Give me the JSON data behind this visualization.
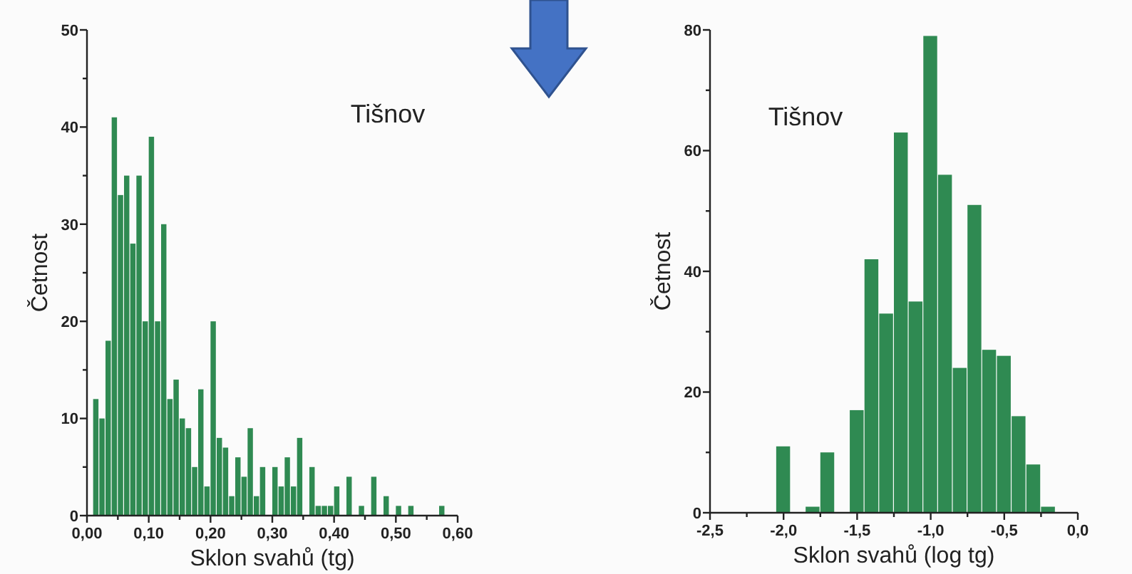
{
  "chart_data": [
    {
      "type": "histogram",
      "title": "Tišnov",
      "xlabel": "Sklon svahů (tg)",
      "ylabel": "Četnost",
      "color": "#2f8a52",
      "bins": [
        0.01,
        0.02,
        0.03,
        0.04,
        0.05,
        0.06,
        0.07,
        0.08,
        0.09,
        0.1,
        0.11,
        0.12,
        0.13,
        0.14,
        0.15,
        0.16,
        0.17,
        0.18,
        0.19,
        0.2,
        0.21,
        0.22,
        0.23,
        0.24,
        0.25,
        0.26,
        0.27,
        0.28,
        0.29,
        0.3,
        0.31,
        0.32,
        0.33,
        0.34,
        0.35,
        0.36,
        0.37,
        0.38,
        0.39,
        0.4,
        0.41,
        0.42,
        0.43,
        0.44,
        0.45,
        0.46,
        0.47,
        0.48,
        0.49,
        0.5,
        0.51,
        0.52,
        0.53,
        0.54,
        0.55,
        0.56,
        0.57,
        0.58
      ],
      "values": [
        12,
        10,
        18,
        41,
        33,
        35,
        28,
        35,
        20,
        39,
        20,
        30,
        12,
        14,
        10,
        9,
        5,
        13,
        3,
        20,
        8,
        7,
        2,
        6,
        4,
        9,
        2,
        5,
        0,
        5,
        3,
        6,
        3,
        8,
        0,
        5,
        1,
        1,
        1,
        3,
        0,
        4,
        0,
        1,
        0,
        4,
        0,
        2,
        0,
        1,
        0,
        1,
        0,
        0,
        0,
        0,
        1
      ],
      "xlim": [
        0,
        0.6
      ],
      "ylim": [
        0,
        50
      ],
      "xticks": [
        {
          "value": 0,
          "label": "0,00"
        },
        {
          "value": 0.05,
          "label": null
        },
        {
          "value": 0.1,
          "label": "0,10"
        },
        {
          "value": 0.15,
          "label": null
        },
        {
          "value": 0.2,
          "label": "0,20"
        },
        {
          "value": 0.25,
          "label": null
        },
        {
          "value": 0.3,
          "label": "0,30"
        },
        {
          "value": 0.35,
          "label": null
        },
        {
          "value": 0.4,
          "label": "0,40"
        },
        {
          "value": 0.45,
          "label": null
        },
        {
          "value": 0.5,
          "label": "0,50"
        },
        {
          "value": 0.55,
          "label": null
        },
        {
          "value": 0.6,
          "label": "0,60"
        }
      ],
      "yticks": [
        0,
        {
          "value": 5,
          "label": null
        },
        10,
        {
          "value": 15,
          "label": null
        },
        20,
        {
          "value": 25,
          "label": null
        },
        30,
        {
          "value": 35,
          "label": null
        },
        40,
        {
          "value": 45,
          "label": null
        },
        50
      ]
    },
    {
      "type": "histogram",
      "title": "Tišnov",
      "xlabel": "Sklon svahů (log tg)",
      "ylabel": "Četnost",
      "color": "#2f8a52",
      "bins": [
        -2.05,
        -1.95,
        -1.85,
        -1.75,
        -1.65,
        -1.55,
        -1.45,
        -1.35,
        -1.25,
        -1.15,
        -1.05,
        -0.95,
        -0.85,
        -0.75,
        -0.65,
        -0.55,
        -0.45,
        -0.35,
        -0.25,
        -0.15
      ],
      "values": [
        11,
        0,
        1,
        10,
        0,
        17,
        42,
        33,
        63,
        35,
        79,
        56,
        24,
        51,
        27,
        26,
        16,
        8,
        1
      ],
      "xlim": [
        -2.5,
        0
      ],
      "ylim": [
        0,
        80
      ],
      "xticks": [
        {
          "value": -2.5,
          "label": "-2,5"
        },
        {
          "value": -2.25,
          "label": null
        },
        {
          "value": -2,
          "label": "-2,0"
        },
        {
          "value": -1.75,
          "label": null
        },
        {
          "value": -1.5,
          "label": "-1,5"
        },
        {
          "value": -1.25,
          "label": null
        },
        {
          "value": -1,
          "label": "-1,0"
        },
        {
          "value": -0.75,
          "label": null
        },
        {
          "value": -0.5,
          "label": "-0,5"
        },
        {
          "value": -0.25,
          "label": null
        },
        {
          "value": 0,
          "label": "0,0"
        }
      ],
      "yticks": [
        0,
        {
          "value": 10,
          "label": null
        },
        20,
        {
          "value": 30,
          "label": null
        },
        40,
        {
          "value": 50,
          "label": null
        },
        60,
        {
          "value": 70,
          "label": null
        },
        80
      ]
    }
  ]
}
